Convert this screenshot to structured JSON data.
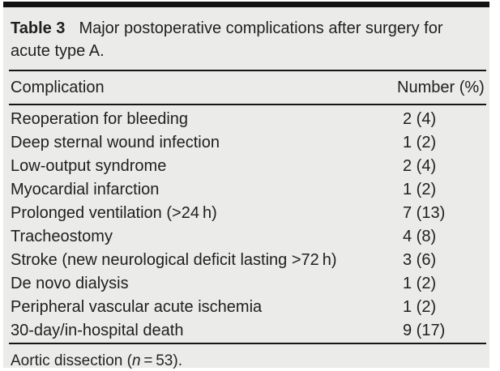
{
  "table": {
    "caption_label": "Table 3",
    "caption_text": "Major postoperative complications after surgery for acute type A.",
    "columns": {
      "complication": "Complication",
      "number": "Number (%)"
    },
    "rows": [
      {
        "complication": "Reoperation for bleeding",
        "number": "2 (4)"
      },
      {
        "complication": "Deep sternal wound infection",
        "number": "1 (2)"
      },
      {
        "complication": "Low-output syndrome",
        "number": "2 (4)"
      },
      {
        "complication": "Myocardial infarction",
        "number": "1 (2)"
      },
      {
        "complication": "Prolonged ventilation (>24 h)",
        "number": "7 (13)"
      },
      {
        "complication": "Tracheostomy",
        "number": "4 (8)"
      },
      {
        "complication": "Stroke (new neurological deficit lasting >72 h)",
        "number": "3 (6)"
      },
      {
        "complication": "De novo dialysis",
        "number": "1 (2)"
      },
      {
        "complication": "Peripheral vascular acute ischemia",
        "number": "1 (2)"
      },
      {
        "complication": "30-day/in-hospital death",
        "number": "9 (17)"
      }
    ],
    "footnote": {
      "prefix": "Aortic dissection (",
      "variable": "n",
      "suffix": " = 53)."
    }
  },
  "colors": {
    "panel_background": "#ebebe9",
    "top_bar": "#121212",
    "rule": "#161616",
    "text": "#1f1f1f"
  }
}
